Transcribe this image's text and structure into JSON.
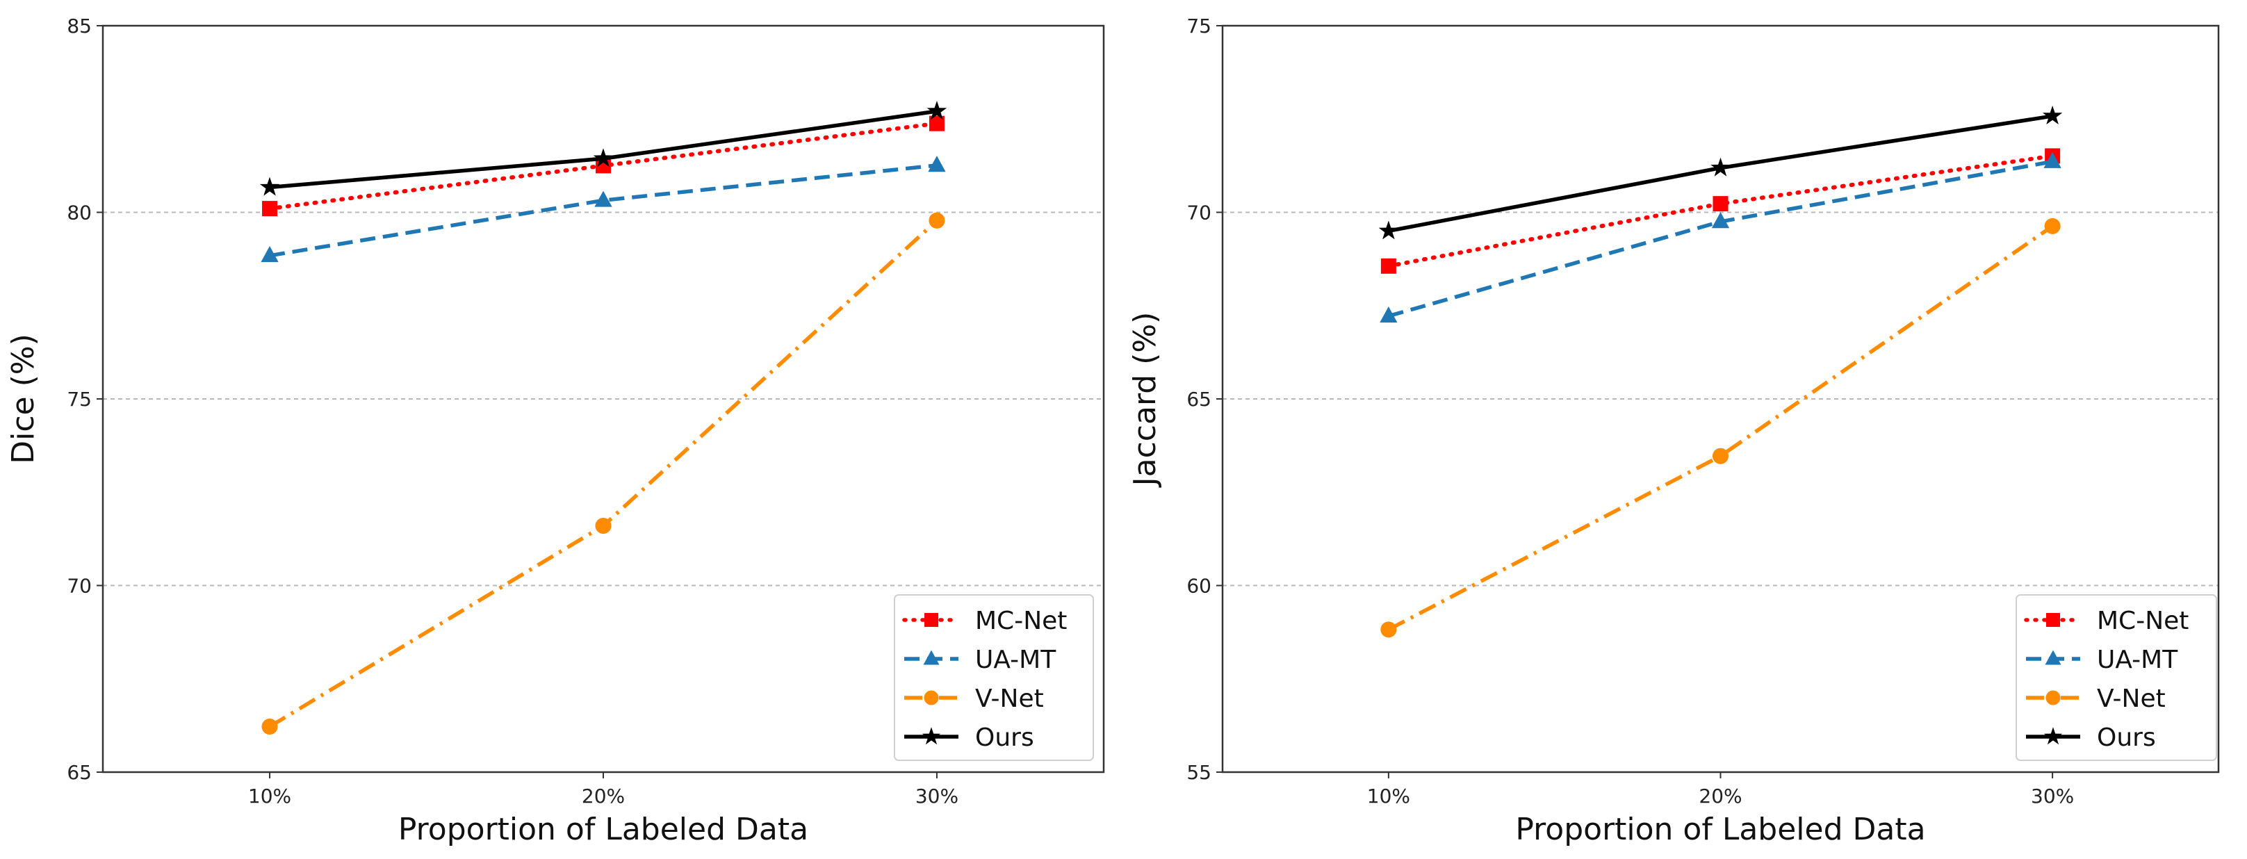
{
  "chart_data": [
    {
      "type": "line",
      "title": "",
      "xlabel": "Proportion of Labeled Data",
      "ylabel": "Dice (%)",
      "categories": [
        "10%",
        "20%",
        "30%"
      ],
      "ylim": [
        65,
        85
      ],
      "yticks": [
        65,
        70,
        75,
        80,
        85
      ],
      "grid": "horizontal dashed",
      "legend_position": "lower-right",
      "series": [
        {
          "name": "MC-Net",
          "color": "#ff0000",
          "style": "dotted",
          "marker": "square",
          "values": [
            80.1,
            81.25,
            82.38
          ]
        },
        {
          "name": "UA-MT",
          "color": "#1f77b4",
          "style": "dashed",
          "marker": "triangle",
          "values": [
            78.84,
            80.32,
            81.26
          ]
        },
        {
          "name": "V-Net",
          "color": "#ff8c00",
          "style": "dashdot",
          "marker": "circle",
          "values": [
            66.22,
            71.6,
            79.78
          ]
        },
        {
          "name": "Ours",
          "color": "#000000",
          "style": "solid",
          "marker": "star",
          "values": [
            80.67,
            81.44,
            82.71
          ]
        }
      ]
    },
    {
      "type": "line",
      "title": "",
      "xlabel": "Proportion of Labeled Data",
      "ylabel": "Jaccard (%)",
      "categories": [
        "10%",
        "20%",
        "30%"
      ],
      "ylim": [
        55,
        75
      ],
      "yticks": [
        55,
        60,
        65,
        70,
        75
      ],
      "grid": "horizontal dashed",
      "legend_position": "lower-right",
      "series": [
        {
          "name": "MC-Net",
          "color": "#ff0000",
          "style": "dotted",
          "marker": "square",
          "values": [
            68.56,
            70.23,
            71.51
          ]
        },
        {
          "name": "UA-MT",
          "color": "#1f77b4",
          "style": "dashed",
          "marker": "triangle",
          "values": [
            67.22,
            69.75,
            71.36
          ]
        },
        {
          "name": "V-Net",
          "color": "#ff8c00",
          "style": "dashdot",
          "marker": "circle",
          "values": [
            58.82,
            63.47,
            69.63
          ]
        },
        {
          "name": "Ours",
          "color": "#000000",
          "style": "solid",
          "marker": "star",
          "values": [
            69.5,
            71.19,
            72.58
          ]
        }
      ]
    }
  ]
}
